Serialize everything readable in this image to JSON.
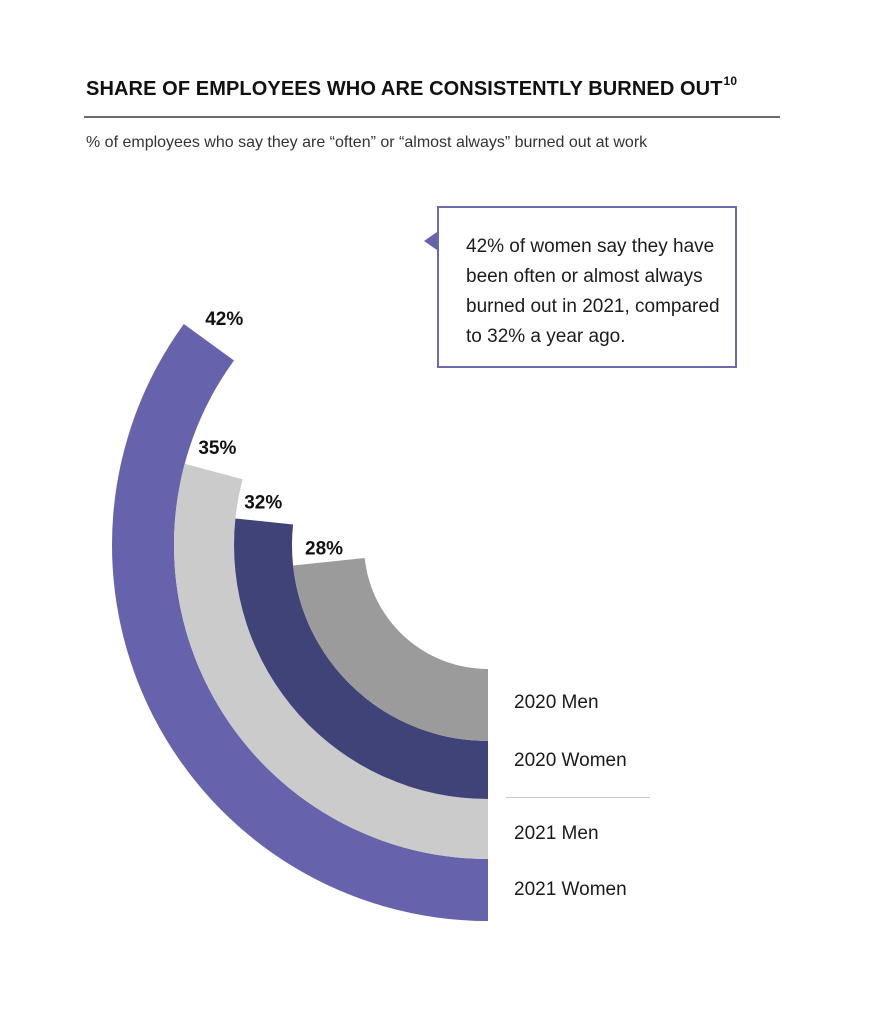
{
  "title": "SHARE OF EMPLOYEES WHO ARE CONSISTENTLY BURNED OUT",
  "title_footnote": "10",
  "subtitle": "% of employees who say they are “often” or “almost always” burned out at work",
  "callout": "42% of women say they have been often or almost always burned out in 2021, compared to 32% a year ago.",
  "colors": {
    "women_2021": "#6663ac",
    "men_2021": "#cbcbcb",
    "women_2020": "#404378",
    "men_2020": "#9b9b9b",
    "callout_border": "#6a6aad"
  },
  "chart_data": {
    "type": "radial-bar",
    "title": "SHARE OF EMPLOYEES WHO ARE CONSISTENTLY BURNED OUT",
    "subtitle": "% of employees who say they are “often” or “almost always” burned out at work",
    "unit": "%",
    "series": [
      {
        "name": "2021 Women",
        "value": 42,
        "label": "42%"
      },
      {
        "name": "2021 Men",
        "value": 35,
        "label": "35%"
      },
      {
        "name": "2020 Women",
        "value": 32,
        "label": "32%"
      },
      {
        "name": "2020 Men",
        "value": 28,
        "label": "28%"
      }
    ]
  }
}
